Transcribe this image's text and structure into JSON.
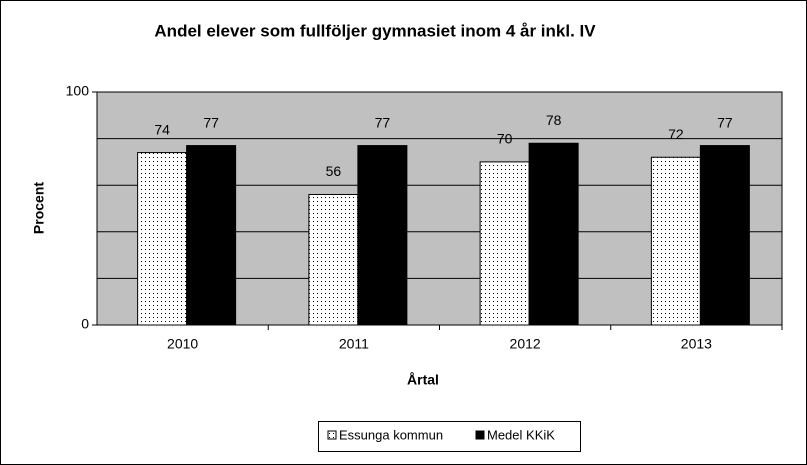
{
  "chart_data": {
    "type": "bar",
    "title": "Andel elever som fullföljer gymnasiet inom 4 år inkl. IV",
    "x_label": "Årtal",
    "y_label": "Procent",
    "categories": [
      "2010",
      "2011",
      "2012",
      "2013"
    ],
    "series": [
      {
        "name": "Essunga kommun",
        "color": "#ffffff",
        "pattern": "dots",
        "values": [
          74,
          56,
          70,
          72
        ]
      },
      {
        "name": "Medel KKiK",
        "color": "#000000",
        "values": [
          77,
          77,
          78,
          77
        ]
      }
    ],
    "ylim": [
      0,
      100
    ],
    "yticks": [
      0,
      100
    ],
    "grid_lines": [
      20,
      40,
      60,
      80
    ],
    "plot_background": "#c0c0c0",
    "legend": "bottom"
  }
}
